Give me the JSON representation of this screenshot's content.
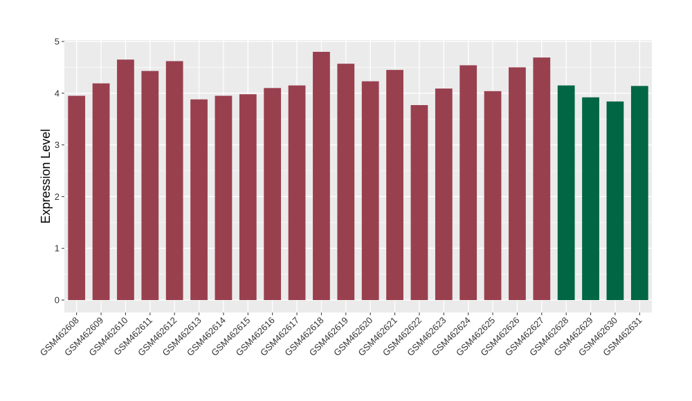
{
  "chart_data": {
    "type": "bar",
    "title": "",
    "xlabel": "",
    "ylabel": "Expression Level",
    "ylim": [
      0,
      5
    ],
    "yticks": [
      0,
      1,
      2,
      3,
      4,
      5
    ],
    "grid": true,
    "legend": "none",
    "panel_background": "#ebebeb",
    "grid_color": "#ffffff",
    "categories": [
      "GSM462608",
      "GSM462609",
      "GSM462610",
      "GSM462611",
      "GSM462612",
      "GSM462613",
      "GSM462614",
      "GSM462615",
      "GSM462616",
      "GSM462617",
      "GSM462618",
      "GSM462619",
      "GSM462620",
      "GSM462621",
      "GSM462622",
      "GSM462623",
      "GSM462624",
      "GSM462625",
      "GSM462626",
      "GSM462627",
      "GSM462628",
      "GSM462629",
      "GSM462630",
      "GSM462631"
    ],
    "values": [
      3.95,
      4.19,
      4.65,
      4.43,
      4.62,
      3.88,
      3.95,
      3.98,
      4.1,
      4.15,
      4.8,
      4.57,
      4.23,
      4.45,
      3.77,
      4.09,
      4.54,
      4.04,
      4.5,
      4.69,
      4.15,
      3.92,
      3.84,
      4.14
    ],
    "colors": [
      "#99404f",
      "#99404f",
      "#99404f",
      "#99404f",
      "#99404f",
      "#99404f",
      "#99404f",
      "#99404f",
      "#99404f",
      "#99404f",
      "#99404f",
      "#99404f",
      "#99404f",
      "#99404f",
      "#99404f",
      "#99404f",
      "#99404f",
      "#99404f",
      "#99404f",
      "#99404f",
      "#006644",
      "#006644",
      "#006644",
      "#006644"
    ]
  }
}
